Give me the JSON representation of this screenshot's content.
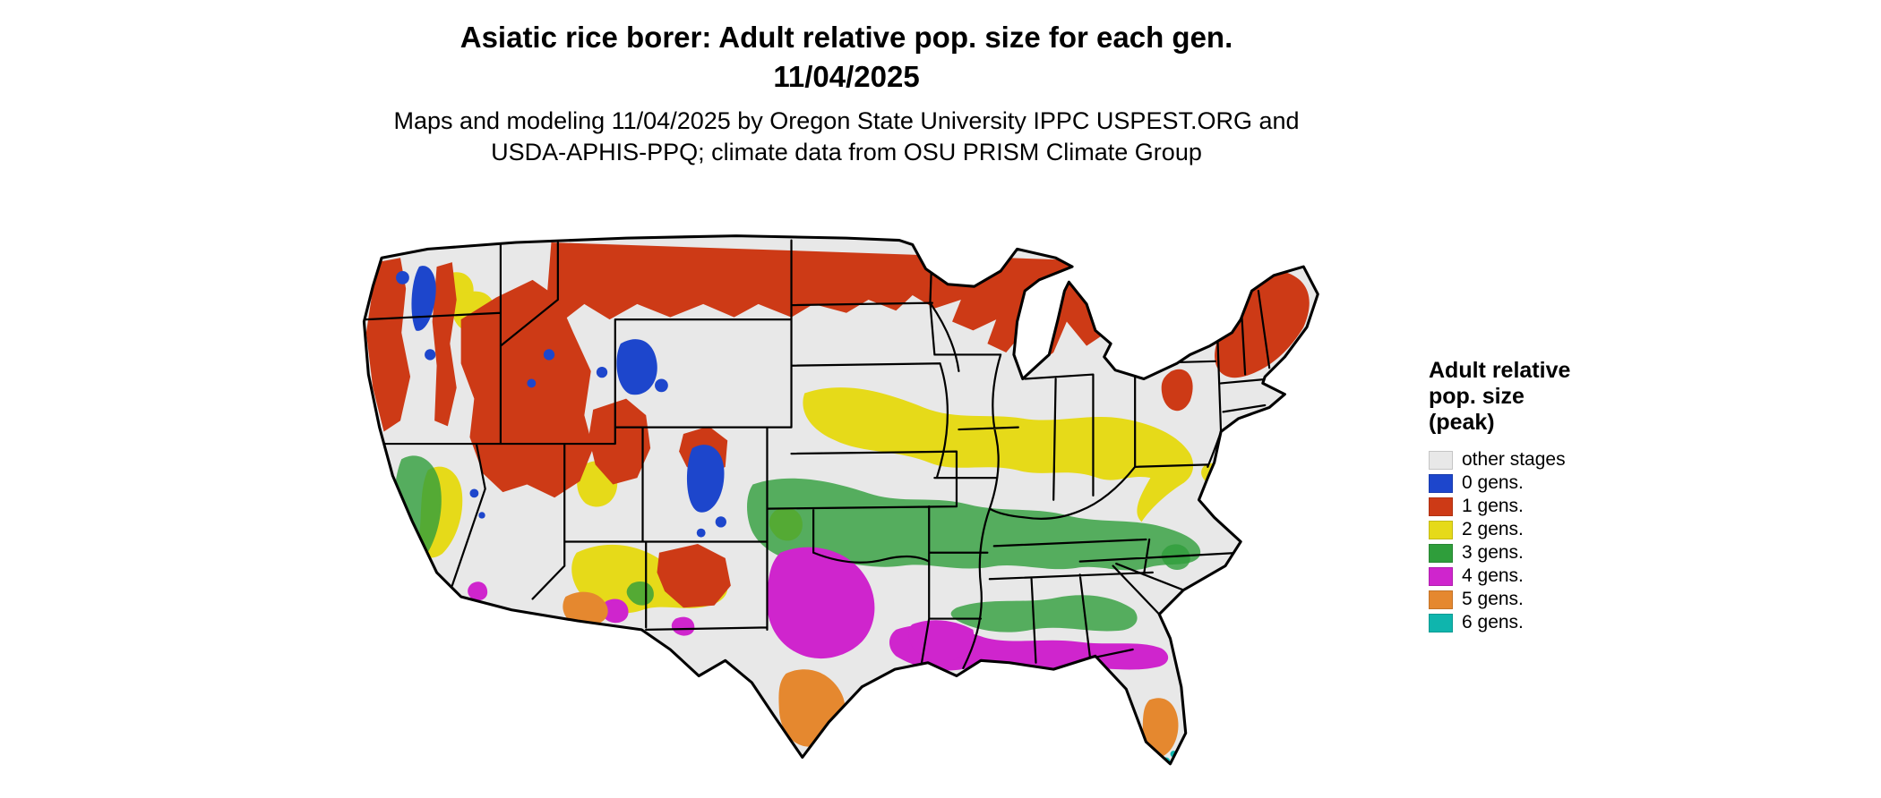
{
  "header": {
    "title_line1": "Asiatic rice borer: Adult relative pop. size for each gen.",
    "title_line2": "11/04/2025",
    "subtitle_line1": "Maps and modeling 11/04/2025 by Oregon State University IPPC USPEST.ORG and",
    "subtitle_line2": "USDA-APHIS-PPQ; climate data from OSU PRISM Climate Group"
  },
  "legend": {
    "title_line1": "Adult relative",
    "title_line2": "pop. size",
    "title_line3": "(peak)",
    "items": [
      {
        "label": "other stages",
        "color": "#e8e8e8"
      },
      {
        "label": "0 gens.",
        "color": "#1d46cc"
      },
      {
        "label": "1 gens.",
        "color": "#cd3a16"
      },
      {
        "label": "2 gens.",
        "color": "#e6da19"
      },
      {
        "label": "3 gens.",
        "color": "#2f9e3b"
      },
      {
        "label": "4 gens.",
        "color": "#cf25cd"
      },
      {
        "label": "5 gens.",
        "color": "#e5882f"
      },
      {
        "label": "6 gens.",
        "color": "#0fb5ad"
      }
    ]
  },
  "map": {
    "region": "Continental United States",
    "palette": {
      "other": "#e8e8e8",
      "gen0": "#1d46cc",
      "gen1": "#cd3a16",
      "gen2": "#e6da19",
      "gen3": "#2f9e3b",
      "gen4": "#cf25cd",
      "gen5": "#e5882f",
      "gen6": "#0fb5ad"
    },
    "border_color": "#000000"
  }
}
